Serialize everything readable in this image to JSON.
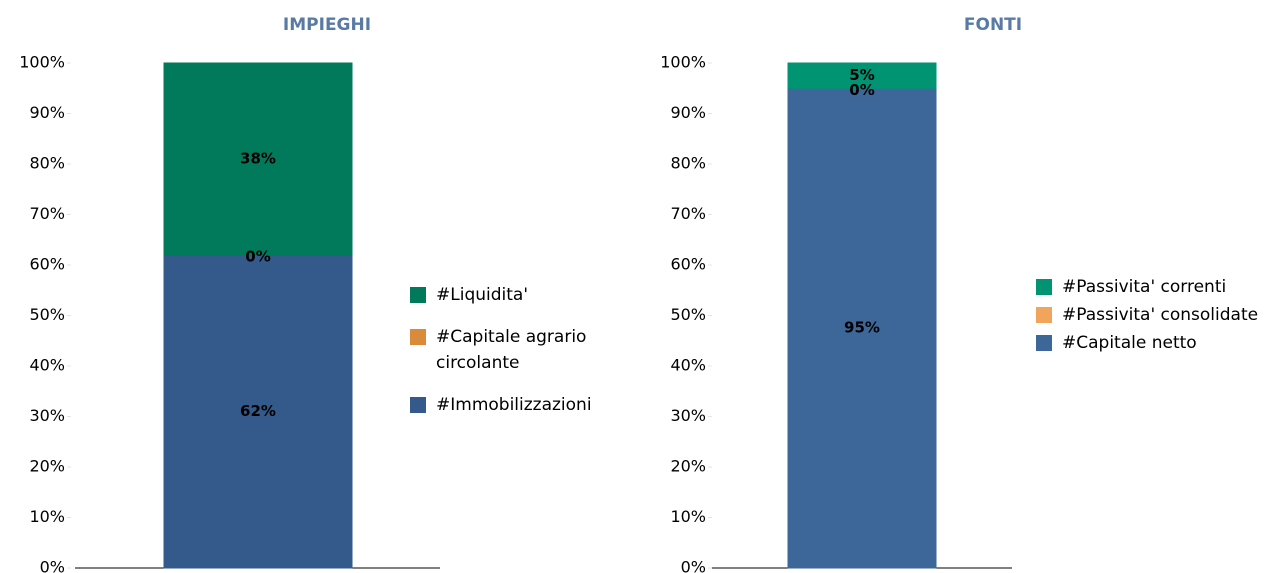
{
  "chart_data": [
    {
      "type": "bar",
      "stacked": true,
      "title": "IMPIEGHI",
      "categories": [
        null
      ],
      "series": [
        {
          "name": "#Immobilizzazioni",
          "color": "#335a8a",
          "values": [
            62
          ],
          "value_labels": [
            "62%"
          ]
        },
        {
          "name": "#Capitale agrario circolante",
          "color": "#d98a3a",
          "values": [
            0
          ],
          "value_labels": [
            "0%"
          ]
        },
        {
          "name": "#Liquidita'",
          "color": "#007a5a",
          "values": [
            38
          ],
          "value_labels": [
            "38%"
          ]
        }
      ],
      "ylim": [
        0,
        100
      ],
      "yticks": [
        {
          "value": 0,
          "label": "0%"
        },
        {
          "value": 10,
          "label": "10%"
        },
        {
          "value": 20,
          "label": "20%"
        },
        {
          "value": 30,
          "label": "30%"
        },
        {
          "value": 40,
          "label": "40%"
        },
        {
          "value": 50,
          "label": "50%"
        },
        {
          "value": 60,
          "label": "60%"
        },
        {
          "value": 70,
          "label": "70%"
        },
        {
          "value": 80,
          "label": "80%"
        },
        {
          "value": 90,
          "label": "90%"
        },
        {
          "value": 100,
          "label": "100%"
        }
      ],
      "grid": false,
      "legend": "right"
    },
    {
      "type": "bar",
      "stacked": true,
      "title": "FONTI",
      "categories": [
        null
      ],
      "series": [
        {
          "name": "#Capitale netto",
          "color": "#3d6699",
          "values": [
            95
          ],
          "value_labels": [
            "95%"
          ]
        },
        {
          "name": "#Passivita' consolidate",
          "color": "#f0a55a",
          "values": [
            0
          ],
          "value_labels": [
            "0%"
          ]
        },
        {
          "name": "#Passivita' correnti",
          "color": "#009473",
          "values": [
            5
          ],
          "value_labels": [
            "5%"
          ]
        }
      ],
      "ylim": [
        0,
        100
      ],
      "yticks": [
        {
          "value": 0,
          "label": "0%"
        },
        {
          "value": 10,
          "label": "10%"
        },
        {
          "value": 20,
          "label": "20%"
        },
        {
          "value": 30,
          "label": "30%"
        },
        {
          "value": 40,
          "label": "40%"
        },
        {
          "value": 50,
          "label": "50%"
        },
        {
          "value": 60,
          "label": "60%"
        },
        {
          "value": 70,
          "label": "70%"
        },
        {
          "value": 80,
          "label": "80%"
        },
        {
          "value": 90,
          "label": "90%"
        },
        {
          "value": 100,
          "label": "100%"
        }
      ],
      "grid": false,
      "legend": "right"
    }
  ]
}
